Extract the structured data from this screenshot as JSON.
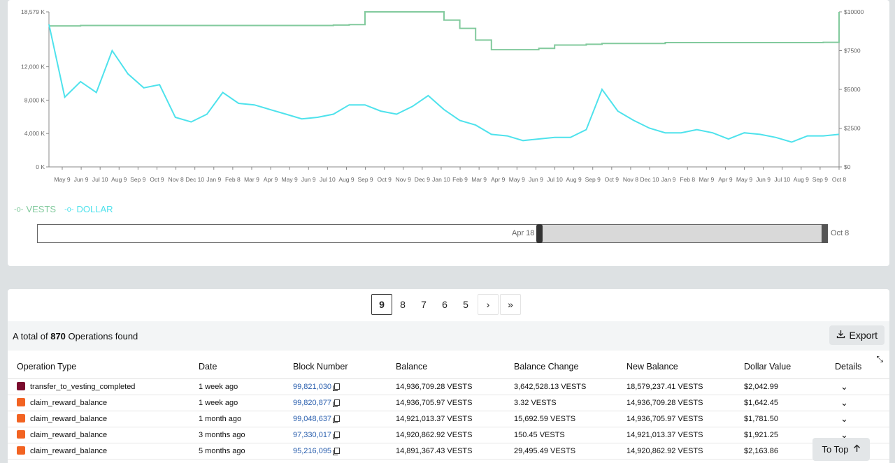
{
  "chart": {
    "left_ticks": [
      "18,579 K",
      "12,000 K",
      "8,000 K",
      "4,000 K",
      "0 K"
    ],
    "right_ticks": [
      "$10000",
      "$7500",
      "$5000",
      "$2500",
      "$0"
    ],
    "x_ticks": [
      "May 9",
      "Jun 9",
      "Jul 10",
      "Aug 9",
      "Sep 9",
      "Oct 9",
      "Nov 8",
      "Dec 10",
      "Jan 9",
      "Feb 8",
      "Mar 9",
      "Apr 9",
      "May 9",
      "Jun 9",
      "Jul 10",
      "Aug 9",
      "Sep 9",
      "Oct 9",
      "Nov 9",
      "Dec 9",
      "Jan 10",
      "Feb 9",
      "Mar 9",
      "Apr 9",
      "May 9",
      "Jun 9",
      "Jul 10",
      "Aug 9",
      "Sep 9",
      "Oct 9",
      "Nov 8",
      "Dec 10",
      "Jan 9",
      "Feb 8",
      "Mar 9",
      "Apr 9",
      "May 9",
      "Jun 9",
      "Jul 10",
      "Aug 9",
      "Sep 9",
      "Oct 8"
    ],
    "legend": [
      {
        "label": "VESTS",
        "color": "#82ca9d"
      },
      {
        "label": "DOLLAR",
        "color": "#4ee2ec"
      }
    ],
    "brush_start": "Apr 18",
    "brush_end": "Oct 8"
  },
  "chart_data": {
    "type": "line",
    "series": [
      {
        "name": "VESTS",
        "axis": "left",
        "unit": "K",
        "values": [
          16900,
          16900,
          16950,
          16950,
          16950,
          16950,
          16950,
          16950,
          16950,
          16950,
          16950,
          16950,
          16950,
          16950,
          16950,
          16950,
          16950,
          16950,
          17000,
          17050,
          18579,
          18579,
          18579,
          18579,
          18579,
          17600,
          16600,
          15200,
          14050,
          14050,
          14050,
          14200,
          14600,
          14600,
          14700,
          14800,
          14800,
          14800,
          14800,
          14900,
          14900,
          14900,
          14900,
          14900,
          14900,
          14900,
          14900,
          14900,
          14900,
          14930,
          18579
        ]
      },
      {
        "name": "DOLLAR",
        "axis": "right",
        "values": [
          9200,
          4500,
          5500,
          4800,
          7500,
          6000,
          5100,
          5300,
          3200,
          2900,
          3400,
          4800,
          4100,
          4000,
          3700,
          3400,
          3100,
          3200,
          3400,
          4000,
          4000,
          3600,
          3400,
          3900,
          4600,
          3700,
          3000,
          2700,
          2100,
          2000,
          1700,
          1800,
          1900,
          1900,
          2400,
          5000,
          3600,
          3000,
          2500,
          2200,
          2200,
          2400,
          2200,
          1800,
          2200,
          2100,
          1900,
          1600,
          2000,
          2000,
          2100
        ]
      }
    ],
    "left_ylim": [
      0,
      18579
    ],
    "right_ylim": [
      0,
      10000
    ]
  },
  "pagination": {
    "pages": [
      "9",
      "8",
      "7",
      "6",
      "5"
    ],
    "active": "9",
    "next_symbol": "›",
    "last_symbol": "»"
  },
  "summary": {
    "prefix": "A total of",
    "count": "870",
    "suffix": "Operations found",
    "export_label": "Export"
  },
  "table": {
    "headers": [
      "Operation Type",
      "Date",
      "Block Number",
      "Balance",
      "Balance Change",
      "New Balance",
      "Dollar Value",
      "Details"
    ],
    "rows": [
      {
        "type": "transfer_to_vesting_completed",
        "color": "#7a0c2e",
        "date": "1 week ago",
        "block": "99,821,030",
        "balance": "14,936,709.28 VESTS",
        "change": "3,642,528.13 VESTS",
        "new_balance": "18,579,237.41 VESTS",
        "dollar": "$2,042.99"
      },
      {
        "type": "claim_reward_balance",
        "color": "#f26322",
        "date": "1 week ago",
        "block": "99,820,877",
        "balance": "14,936,705.97 VESTS",
        "change": "3.32 VESTS",
        "new_balance": "14,936,709.28 VESTS",
        "dollar": "$1,642.45"
      },
      {
        "type": "claim_reward_balance",
        "color": "#f26322",
        "date": "1 month ago",
        "block": "99,048,637",
        "balance": "14,921,013.37 VESTS",
        "change": "15,692.59 VESTS",
        "new_balance": "14,936,705.97 VESTS",
        "dollar": "$1,781.50"
      },
      {
        "type": "claim_reward_balance",
        "color": "#f26322",
        "date": "3 months ago",
        "block": "97,330,017",
        "balance": "14,920,862.92 VESTS",
        "change": "150.45 VESTS",
        "new_balance": "14,921,013.37 VESTS",
        "dollar": "$1,921.25"
      },
      {
        "type": "claim_reward_balance",
        "color": "#f26322",
        "date": "5 months ago",
        "block": "95,216,095",
        "balance": "14,891,367.43 VESTS",
        "change": "29,495.49 VESTS",
        "new_balance": "14,920,862.92 VESTS",
        "dollar": "$2,163.86"
      }
    ]
  },
  "to_top_label": "To Top"
}
